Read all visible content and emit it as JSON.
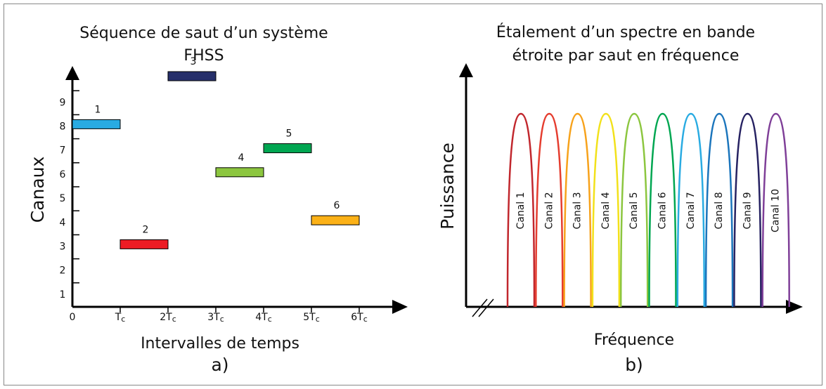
{
  "panel_a": {
    "title_lines": [
      "Séquence de saut d’un système",
      "FHSS"
    ],
    "y_label": "Canaux",
    "x_label": "Intervalles de temps",
    "caption": "a)",
    "y_ticks": [
      "1",
      "2",
      "3",
      "4",
      "5",
      "6",
      "7",
      "8",
      "9"
    ],
    "x_ticks": [
      {
        "text": "0"
      },
      {
        "text": "T",
        "sub": "c"
      },
      {
        "text": "2T",
        "sub": "c"
      },
      {
        "text": "3T",
        "sub": "c"
      },
      {
        "text": "4T",
        "sub": "c"
      },
      {
        "text": "5T",
        "sub": "c"
      },
      {
        "text": "6T",
        "sub": "c"
      }
    ],
    "hops": [
      {
        "label": "1",
        "slot": 0,
        "channel": 7,
        "color": "#29abe2"
      },
      {
        "label": "2",
        "slot": 1,
        "channel": 2,
        "color": "#ed1c24"
      },
      {
        "label": "3",
        "slot": 2,
        "channel": 9,
        "color": "#262f6a"
      },
      {
        "label": "4",
        "slot": 3,
        "channel": 5,
        "color": "#8cc63f"
      },
      {
        "label": "5",
        "slot": 4,
        "channel": 6,
        "color": "#00a651"
      },
      {
        "label": "6",
        "slot": 5,
        "channel": 3,
        "color": "#fbb117"
      }
    ]
  },
  "panel_b": {
    "title_lines": [
      "Étalement d’un spectre en bande",
      "étroite par saut en fréquence"
    ],
    "y_label": "Puissance",
    "x_label": "Fréquence",
    "caption": "b)",
    "channels": [
      {
        "label": "Canal 1",
        "color": "#c1272d"
      },
      {
        "label": "Canal 2",
        "color": "#e53d2f"
      },
      {
        "label": "Canal 3",
        "color": "#f7a21b"
      },
      {
        "label": "Canal 4",
        "color": "#f2e11a"
      },
      {
        "label": "Canal 5",
        "color": "#8cc63f"
      },
      {
        "label": "Canal 6",
        "color": "#00a651"
      },
      {
        "label": "Canal 7",
        "color": "#29abe2"
      },
      {
        "label": "Canal 8",
        "color": "#1b75bc"
      },
      {
        "label": "Canal 9",
        "color": "#262262"
      },
      {
        "label": "Canal 10",
        "color": "#7f3f98"
      }
    ]
  }
}
